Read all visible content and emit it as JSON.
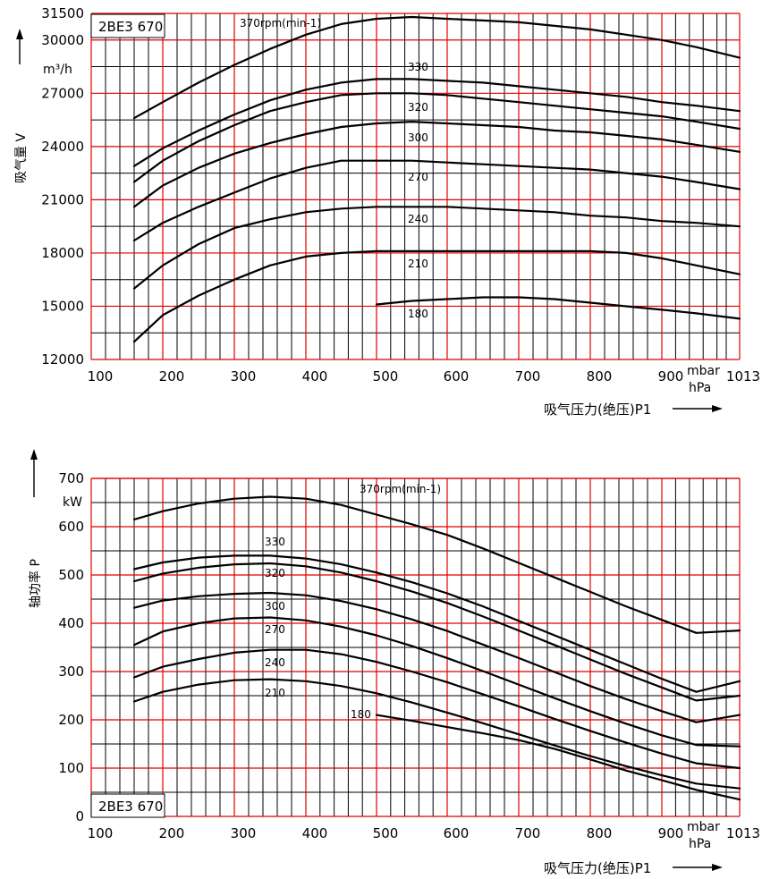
{
  "chart_data": [
    {
      "type": "line",
      "model_label": "2BE3 670",
      "ylabel": "吸气量  V",
      "yunit": "m³/h",
      "xlabel": "吸气压力(绝压)P1",
      "xunit_top": "mbar",
      "xunit_bottom": "hPa",
      "xlim": [
        100,
        1013
      ],
      "ylim": [
        12000,
        31500
      ],
      "x_ticks": [
        "100",
        "200",
        "300",
        "400",
        "500",
        "600",
        "700",
        "800",
        "900",
        "1013"
      ],
      "y_ticks": [
        "12000",
        "15000",
        "18000",
        "21000",
        "24000",
        "27000",
        "30000",
        "31500"
      ],
      "series": [
        {
          "name": "370rpm(min-1)",
          "x": [
            160,
            200,
            250,
            300,
            350,
            400,
            450,
            500,
            550,
            600,
            650,
            700,
            750,
            800,
            850,
            900,
            950,
            1013
          ],
          "y": [
            25600,
            26500,
            27600,
            28600,
            29500,
            30300,
            30900,
            31200,
            31300,
            31200,
            31100,
            31000,
            30800,
            30600,
            30300,
            30000,
            29600,
            29000
          ]
        },
        {
          "name": "330",
          "x": [
            160,
            200,
            250,
            300,
            350,
            400,
            450,
            500,
            550,
            600,
            650,
            700,
            750,
            800,
            850,
            900,
            950,
            1013
          ],
          "y": [
            22900,
            23900,
            24900,
            25800,
            26600,
            27200,
            27600,
            27800,
            27800,
            27700,
            27600,
            27400,
            27200,
            27000,
            26800,
            26500,
            26300,
            26000
          ]
        },
        {
          "name": "320",
          "x": [
            160,
            200,
            250,
            300,
            350,
            400,
            450,
            500,
            550,
            600,
            650,
            700,
            750,
            800,
            850,
            900,
            950,
            1013
          ],
          "y": [
            22000,
            23200,
            24300,
            25200,
            26000,
            26500,
            26900,
            27000,
            27000,
            26900,
            26700,
            26500,
            26300,
            26100,
            25900,
            25700,
            25400,
            25000
          ]
        },
        {
          "name": "300",
          "x": [
            160,
            200,
            250,
            300,
            350,
            400,
            450,
            500,
            550,
            600,
            650,
            700,
            750,
            800,
            850,
            900,
            950,
            1013
          ],
          "y": [
            20600,
            21800,
            22800,
            23600,
            24200,
            24700,
            25100,
            25300,
            25400,
            25300,
            25200,
            25100,
            24900,
            24800,
            24600,
            24400,
            24100,
            23700
          ]
        },
        {
          "name": "270",
          "x": [
            160,
            200,
            250,
            300,
            350,
            400,
            450,
            500,
            550,
            600,
            650,
            700,
            750,
            800,
            850,
            900,
            950,
            1013
          ],
          "y": [
            18700,
            19700,
            20600,
            21400,
            22200,
            22800,
            23200,
            23200,
            23200,
            23100,
            23000,
            22900,
            22800,
            22700,
            22500,
            22300,
            22000,
            21600
          ]
        },
        {
          "name": "240",
          "x": [
            160,
            200,
            250,
            300,
            350,
            400,
            450,
            500,
            550,
            600,
            650,
            700,
            750,
            800,
            850,
            900,
            950,
            1013
          ],
          "y": [
            16000,
            17300,
            18500,
            19400,
            19900,
            20300,
            20500,
            20600,
            20600,
            20600,
            20500,
            20400,
            20300,
            20100,
            20000,
            19800,
            19700,
            19500
          ]
        },
        {
          "name": "210",
          "x": [
            160,
            200,
            250,
            300,
            350,
            400,
            450,
            500,
            550,
            600,
            650,
            700,
            750,
            800,
            850,
            900,
            950,
            1013
          ],
          "y": [
            13000,
            14500,
            15600,
            16500,
            17300,
            17800,
            18000,
            18100,
            18100,
            18100,
            18100,
            18100,
            18100,
            18100,
            18000,
            17700,
            17300,
            16800
          ]
        },
        {
          "name": "180",
          "x": [
            500,
            550,
            600,
            650,
            700,
            750,
            800,
            850,
            900,
            950,
            1013
          ],
          "y": [
            15100,
            15300,
            15400,
            15500,
            15500,
            15400,
            15200,
            15000,
            14800,
            14600,
            14300
          ]
        }
      ]
    },
    {
      "type": "line",
      "model_label": "2BE3 670",
      "ylabel": "轴功率  P",
      "yunit": "kW",
      "xlabel": "吸气压力(绝压)P1",
      "xunit_top": "mbar",
      "xunit_bottom": "hPa",
      "xlim": [
        100,
        1013
      ],
      "ylim": [
        0,
        700
      ],
      "x_ticks": [
        "100",
        "200",
        "300",
        "400",
        "500",
        "600",
        "700",
        "800",
        "900",
        "1013"
      ],
      "y_ticks": [
        "0",
        "100",
        "200",
        "300",
        "400",
        "500",
        "600",
        "700"
      ],
      "series": [
        {
          "name": "370rpm(min-1)",
          "x": [
            160,
            200,
            250,
            300,
            350,
            400,
            450,
            500,
            550,
            600,
            650,
            700,
            750,
            800,
            850,
            900,
            950,
            1013
          ],
          "y": [
            615,
            632,
            648,
            658,
            662,
            658,
            645,
            625,
            605,
            583,
            555,
            525,
            495,
            465,
            435,
            407,
            380,
            385
          ]
        },
        {
          "name": "330",
          "x": [
            160,
            200,
            250,
            300,
            350,
            400,
            450,
            500,
            550,
            600,
            650,
            700,
            750,
            800,
            850,
            900,
            950,
            1013
          ],
          "y": [
            512,
            526,
            536,
            540,
            540,
            534,
            522,
            505,
            485,
            462,
            435,
            405,
            375,
            345,
            315,
            285,
            258,
            280
          ]
        },
        {
          "name": "320",
          "x": [
            160,
            200,
            250,
            300,
            350,
            400,
            450,
            500,
            550,
            600,
            650,
            700,
            750,
            800,
            850,
            900,
            950,
            1013
          ],
          "y": [
            487,
            503,
            515,
            522,
            524,
            518,
            505,
            487,
            466,
            442,
            414,
            385,
            355,
            325,
            295,
            267,
            240,
            250
          ]
        },
        {
          "name": "300",
          "x": [
            160,
            200,
            250,
            300,
            350,
            400,
            450,
            500,
            550,
            600,
            650,
            700,
            750,
            800,
            850,
            900,
            950,
            1013
          ],
          "y": [
            432,
            447,
            456,
            461,
            463,
            458,
            446,
            429,
            408,
            384,
            356,
            328,
            299,
            270,
            243,
            218,
            195,
            210
          ]
        },
        {
          "name": "270",
          "x": [
            160,
            200,
            250,
            300,
            350,
            400,
            450,
            500,
            550,
            600,
            650,
            700,
            750,
            800,
            850,
            900,
            950,
            1013
          ],
          "y": [
            355,
            383,
            400,
            410,
            412,
            406,
            393,
            375,
            353,
            328,
            301,
            273,
            245,
            218,
            192,
            168,
            148,
            145
          ]
        },
        {
          "name": "240",
          "x": [
            160,
            200,
            250,
            300,
            350,
            400,
            450,
            500,
            550,
            600,
            650,
            700,
            750,
            800,
            850,
            900,
            950,
            1013
          ],
          "y": [
            288,
            310,
            326,
            339,
            345,
            345,
            336,
            320,
            300,
            278,
            253,
            228,
            202,
            177,
            153,
            130,
            110,
            100
          ]
        },
        {
          "name": "210",
          "x": [
            160,
            200,
            250,
            300,
            350,
            400,
            450,
            500,
            550,
            600,
            650,
            700,
            750,
            800,
            850,
            900,
            950,
            1013
          ],
          "y": [
            238,
            258,
            273,
            282,
            284,
            280,
            270,
            255,
            236,
            215,
            193,
            170,
            147,
            125,
            104,
            85,
            68,
            58
          ]
        },
        {
          "name": "180",
          "x": [
            500,
            550,
            600,
            650,
            700,
            750,
            800,
            850,
            900,
            950,
            1013
          ],
          "y": [
            210,
            198,
            185,
            172,
            158,
            140,
            118,
            95,
            75,
            55,
            35
          ]
        }
      ]
    }
  ]
}
